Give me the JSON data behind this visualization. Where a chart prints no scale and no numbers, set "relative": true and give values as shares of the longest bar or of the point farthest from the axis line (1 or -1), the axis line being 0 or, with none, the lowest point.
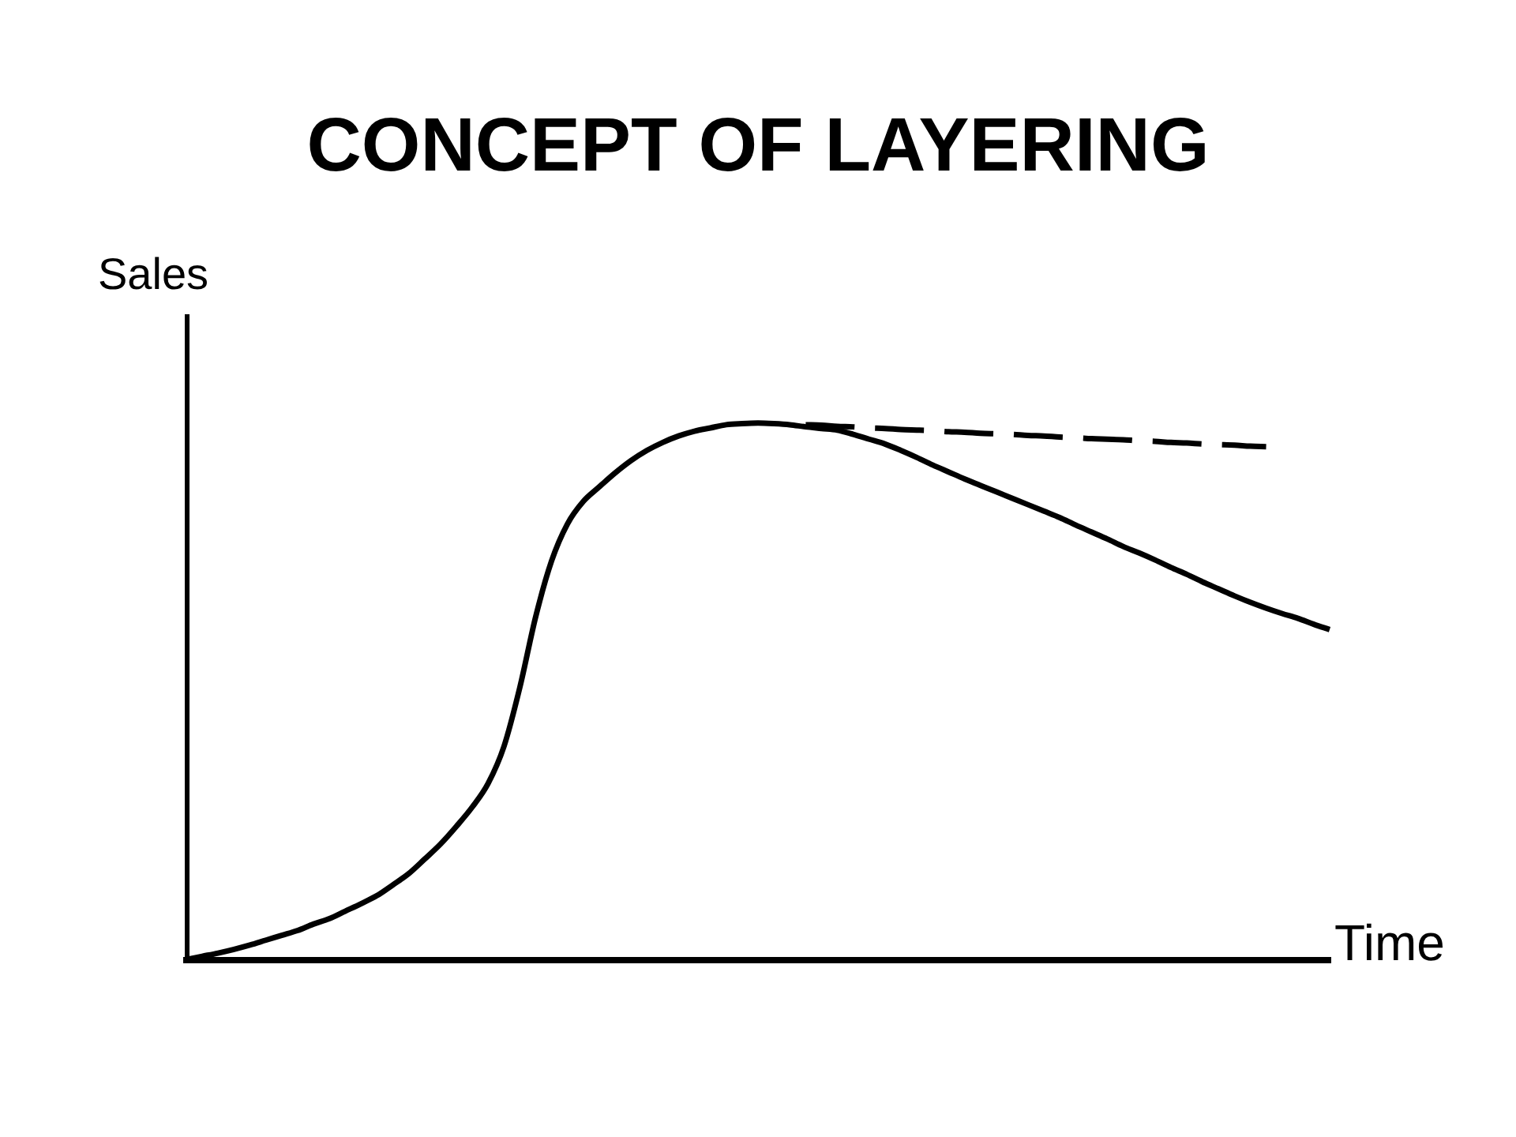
{
  "chart_data": {
    "type": "line",
    "title": "CONCEPT OF LAYERING",
    "xlabel": "Time",
    "ylabel": "Sales",
    "relative": true,
    "legend": false,
    "grid": false,
    "marker": "none",
    "line_style": "solid",
    "categories": [
      null,
      null,
      null,
      null,
      null,
      null,
      null,
      null,
      null,
      null,
      null,
      null,
      null,
      null,
      null,
      null,
      null,
      null,
      null,
      null,
      null,
      null,
      null,
      null,
      null,
      null,
      null,
      null,
      null,
      null,
      null,
      null,
      null,
      null,
      null,
      null,
      null,
      null,
      null,
      null,
      null,
      null,
      null,
      null,
      null,
      null,
      null,
      null,
      null,
      null,
      null,
      null,
      null,
      null,
      null,
      null,
      null,
      null,
      null,
      null,
      null,
      null,
      null,
      null,
      null,
      null,
      null,
      null,
      null,
      null,
      null,
      null,
      null
    ],
    "series": [
      {
        "color": "#000000",
        "values": [
          0,
          0.006,
          0.012,
          0.019,
          0.027,
          0.036,
          0.045,
          0.054,
          0.066,
          0.076,
          0.09,
          0.104,
          0.119,
          0.139,
          0.16,
          0.187,
          0.215,
          0.248,
          0.284,
          0.328,
          0.397,
          0.507,
          0.639,
          0.743,
          0.812,
          0.854,
          0.881,
          0.907,
          0.93,
          0.949,
          0.964,
          0.976,
          0.985,
          0.991,
          0.997,
          0.999,
          1,
          0.999,
          0.997,
          0.993,
          0.99,
          0.987,
          0.979,
          0.97,
          0.961,
          0.949,
          0.936,
          0.922,
          0.909,
          0.896,
          0.884,
          0.872,
          0.86,
          0.848,
          0.836,
          0.824,
          0.81,
          0.797,
          0.784,
          0.77,
          0.758,
          0.745,
          0.731,
          0.718,
          0.704,
          0.691,
          0.678,
          0.666,
          0.655,
          0.645,
          0.636,
          0.625,
          0.615
        ]
      },
      {
        "color": "#000000",
        "line_style": "dashed",
        "values": [
          null,
          null,
          null,
          null,
          null,
          null,
          null,
          null,
          null,
          null,
          null,
          null,
          null,
          null,
          null,
          null,
          null,
          null,
          null,
          null,
          null,
          null,
          null,
          null,
          null,
          null,
          null,
          null,
          null,
          null,
          null,
          null,
          null,
          null,
          null,
          null,
          null,
          null,
          null,
          0.997,
          0.996,
          0.994,
          0.993,
          0.991,
          0.99,
          0.988,
          0.987,
          0.986,
          0.984,
          0.983,
          0.981,
          0.98,
          0.979,
          0.977,
          0.976,
          0.974,
          0.973,
          0.971,
          0.97,
          0.969,
          0.967,
          0.966,
          0.964,
          0.963,
          0.961,
          0.96,
          0.959,
          0.957,
          0.956,
          null,
          null,
          null,
          null
        ]
      }
    ]
  }
}
